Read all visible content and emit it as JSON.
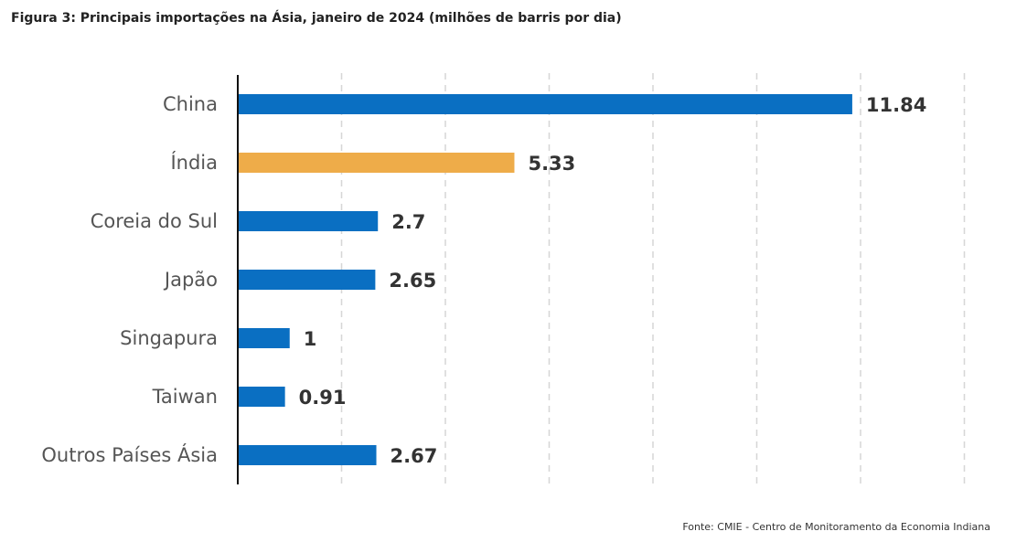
{
  "chart_data": {
    "type": "bar",
    "orientation": "horizontal",
    "title": "Figura 3: Principais importações na Ásia, janeiro de 2024 (milhões de barris por dia)",
    "categories": [
      "China",
      "Índia",
      "Coreia do Sul",
      "Japão",
      "Singapura",
      "Taiwan",
      "Outros Países Ásia"
    ],
    "values": [
      11.84,
      5.33,
      2.7,
      2.65,
      1,
      0.91,
      2.67
    ],
    "value_labels": [
      "11.84",
      "5.33",
      "2.7",
      "2.65",
      "1",
      "0.91",
      "2.67"
    ],
    "bar_colors": [
      "#0a6fc2",
      "#eeac49",
      "#0a6fc2",
      "#0a6fc2",
      "#0a6fc2",
      "#0a6fc2",
      "#0a6fc2"
    ],
    "xlim": [
      0,
      14
    ],
    "grid_step": 2,
    "grid": true,
    "grid_style": "dashed-vertical",
    "xlabel": "",
    "ylabel": "",
    "source": "Fonte: CMIE - Centro de Monitoramento da Economia Indiana"
  }
}
